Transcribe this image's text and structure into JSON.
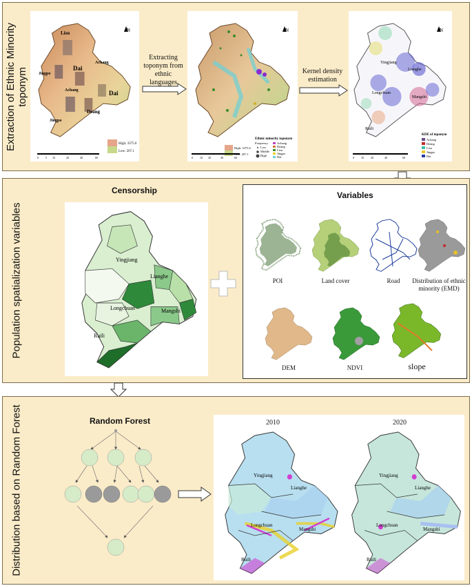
{
  "panel1": {
    "side_label_line1": "Extraction of Ethnic Minority",
    "side_label_line2": "toponym",
    "map1": {
      "labels": [
        "Lisu",
        "Achang",
        "Jingpo",
        "Dai",
        "Achang",
        "Dai",
        "Deang",
        "Jingpo"
      ],
      "legend_high": "High: 3375.6",
      "legend_low": "Low: 207.1",
      "scale": [
        "0",
        "5",
        "10",
        "20",
        "40",
        "60"
      ]
    },
    "arrow1_text": "Extracting toponym from ethnic languages",
    "map2": {
      "legend_title": "Ethnic minority toponym",
      "frequency_title": "Frequency",
      "freq_items": [
        "Low",
        "Middle",
        "High"
      ],
      "ethnic_items": [
        "Achang",
        "Deang",
        "Lisu",
        "Jingpo",
        "Dai"
      ],
      "legend_high": "High: 3375.6",
      "legend_low": "Low: 207.1",
      "scale": [
        "0",
        "10",
        "20",
        "40",
        "60"
      ]
    },
    "arrow2_text": "Kernel density estimation",
    "map3": {
      "labels": [
        "Yingjiang",
        "Lianghe",
        "Longchuan",
        "Mangshi",
        "Ruili"
      ],
      "legend_title": "KDE of toponym",
      "legend_items": [
        "Achang",
        "Deang",
        "Lisu",
        "Jingpo",
        "Dai"
      ],
      "scale": [
        "0",
        "10",
        "20",
        "40",
        "60"
      ]
    },
    "north": "N"
  },
  "panel2": {
    "side_label": "Population spatialization variables",
    "censorship_title": "Censorship",
    "census_labels": [
      "Yingjiang",
      "Lianghe",
      "Longchuan",
      "Mangshi",
      "Ruili"
    ],
    "variables_title": "Variables",
    "variables": [
      "POI",
      "Land cover",
      "Road",
      "Distribution of ethnic minority (EMD)",
      "DEM",
      "NDVI",
      "slope"
    ],
    "plus": "+"
  },
  "panel3": {
    "side_label": "Distribution based on Random Forest",
    "rf_title": "Random Forest",
    "year1": "2010",
    "year2": "2020",
    "map_labels_2010": [
      "Yingjiang",
      "Lianghe",
      "Longchuan",
      "Mangshi",
      "Ruili"
    ],
    "map_labels_2020": [
      "Yingjiang",
      "Lianghe",
      "Longchuan",
      "Mangshi",
      "Ruili"
    ]
  },
  "colors": {
    "panel_bg": "#fbecc9",
    "border": "#7a6a4a",
    "node_light": "#d6ebc8",
    "node_dark": "#9a9a9a",
    "forest_dark": "#1e6e2a"
  }
}
